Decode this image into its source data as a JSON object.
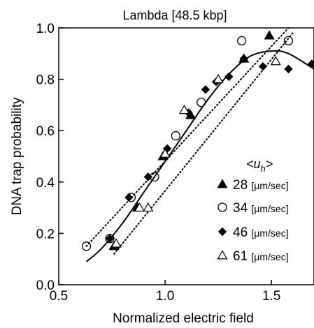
{
  "chart_data": {
    "type": "scatter",
    "title": "Lambda [48.5 kbp]",
    "xlabel": "Normalized electric field",
    "ylabel": "DNA trap probability",
    "xlim": [
      0.5,
      1.7
    ],
    "ylim": [
      0.0,
      1.0
    ],
    "xticks": [
      0.5,
      1.0,
      1.5
    ],
    "xtick_labels": [
      "0.5",
      "1.0",
      "1.5"
    ],
    "yticks": [
      0.0,
      0.2,
      0.4,
      0.6,
      0.8,
      1.0
    ],
    "ytick_labels": [
      "0.0",
      "0.2",
      "0.4",
      "0.6",
      "0.8",
      "1.0"
    ],
    "grid": false,
    "legend_placement": "right",
    "legend_title": "<u",
    "legend_title_sub": "h",
    "legend_title_end": ">",
    "series": [
      {
        "name": "28",
        "unit": "[μm/sec]",
        "marker": "filled-triangle",
        "points": [
          [
            0.76,
            0.15
          ],
          [
            0.87,
            0.3
          ],
          [
            0.99,
            0.5
          ],
          [
            1.12,
            0.66
          ],
          [
            1.37,
            0.88
          ],
          [
            1.49,
            0.97
          ]
        ]
      },
      {
        "name": "34",
        "unit": "[μm/sec]",
        "marker": "open-circle",
        "points": [
          [
            0.63,
            0.15
          ],
          [
            0.74,
            0.18
          ],
          [
            0.84,
            0.34
          ],
          [
            0.95,
            0.42
          ],
          [
            1.05,
            0.58
          ],
          [
            1.17,
            0.71
          ],
          [
            1.36,
            0.95
          ],
          [
            1.58,
            0.95
          ]
        ]
      },
      {
        "name": "46",
        "unit": "[μm/sec]",
        "marker": "filled-diamond",
        "points": [
          [
            0.74,
            0.18
          ],
          [
            0.83,
            0.34
          ],
          [
            0.92,
            0.42
          ],
          [
            1.01,
            0.53
          ],
          [
            1.11,
            0.67
          ],
          [
            1.19,
            0.76
          ],
          [
            1.24,
            0.79
          ],
          [
            1.3,
            0.81
          ],
          [
            1.37,
            0.88
          ],
          [
            1.46,
            0.85
          ],
          [
            1.58,
            0.84
          ],
          [
            1.69,
            0.86
          ]
        ]
      },
      {
        "name": "61",
        "unit": "[μm/sec]",
        "marker": "open-triangle",
        "points": [
          [
            0.77,
            0.16
          ],
          [
            0.88,
            0.3
          ],
          [
            0.92,
            0.3
          ],
          [
            1.0,
            0.51
          ],
          [
            1.09,
            0.68
          ],
          [
            1.25,
            0.8
          ],
          [
            1.52,
            0.87
          ]
        ]
      }
    ],
    "fit_curves": [
      {
        "style": "solid",
        "points": [
          [
            0.63,
            0.09
          ],
          [
            0.7,
            0.14
          ],
          [
            0.8,
            0.24
          ],
          [
            0.9,
            0.36
          ],
          [
            1.0,
            0.48
          ],
          [
            1.1,
            0.6
          ],
          [
            1.2,
            0.72
          ],
          [
            1.3,
            0.82
          ],
          [
            1.4,
            0.89
          ],
          [
            1.5,
            0.91
          ],
          [
            1.58,
            0.9
          ],
          [
            1.7,
            0.84
          ]
        ]
      },
      {
        "style": "dotted",
        "points": [
          [
            0.63,
            0.15
          ],
          [
            1.58,
            1.0
          ]
        ]
      },
      {
        "style": "dotted",
        "points": [
          [
            0.76,
            0.12
          ],
          [
            1.6,
            0.98
          ]
        ]
      }
    ]
  }
}
